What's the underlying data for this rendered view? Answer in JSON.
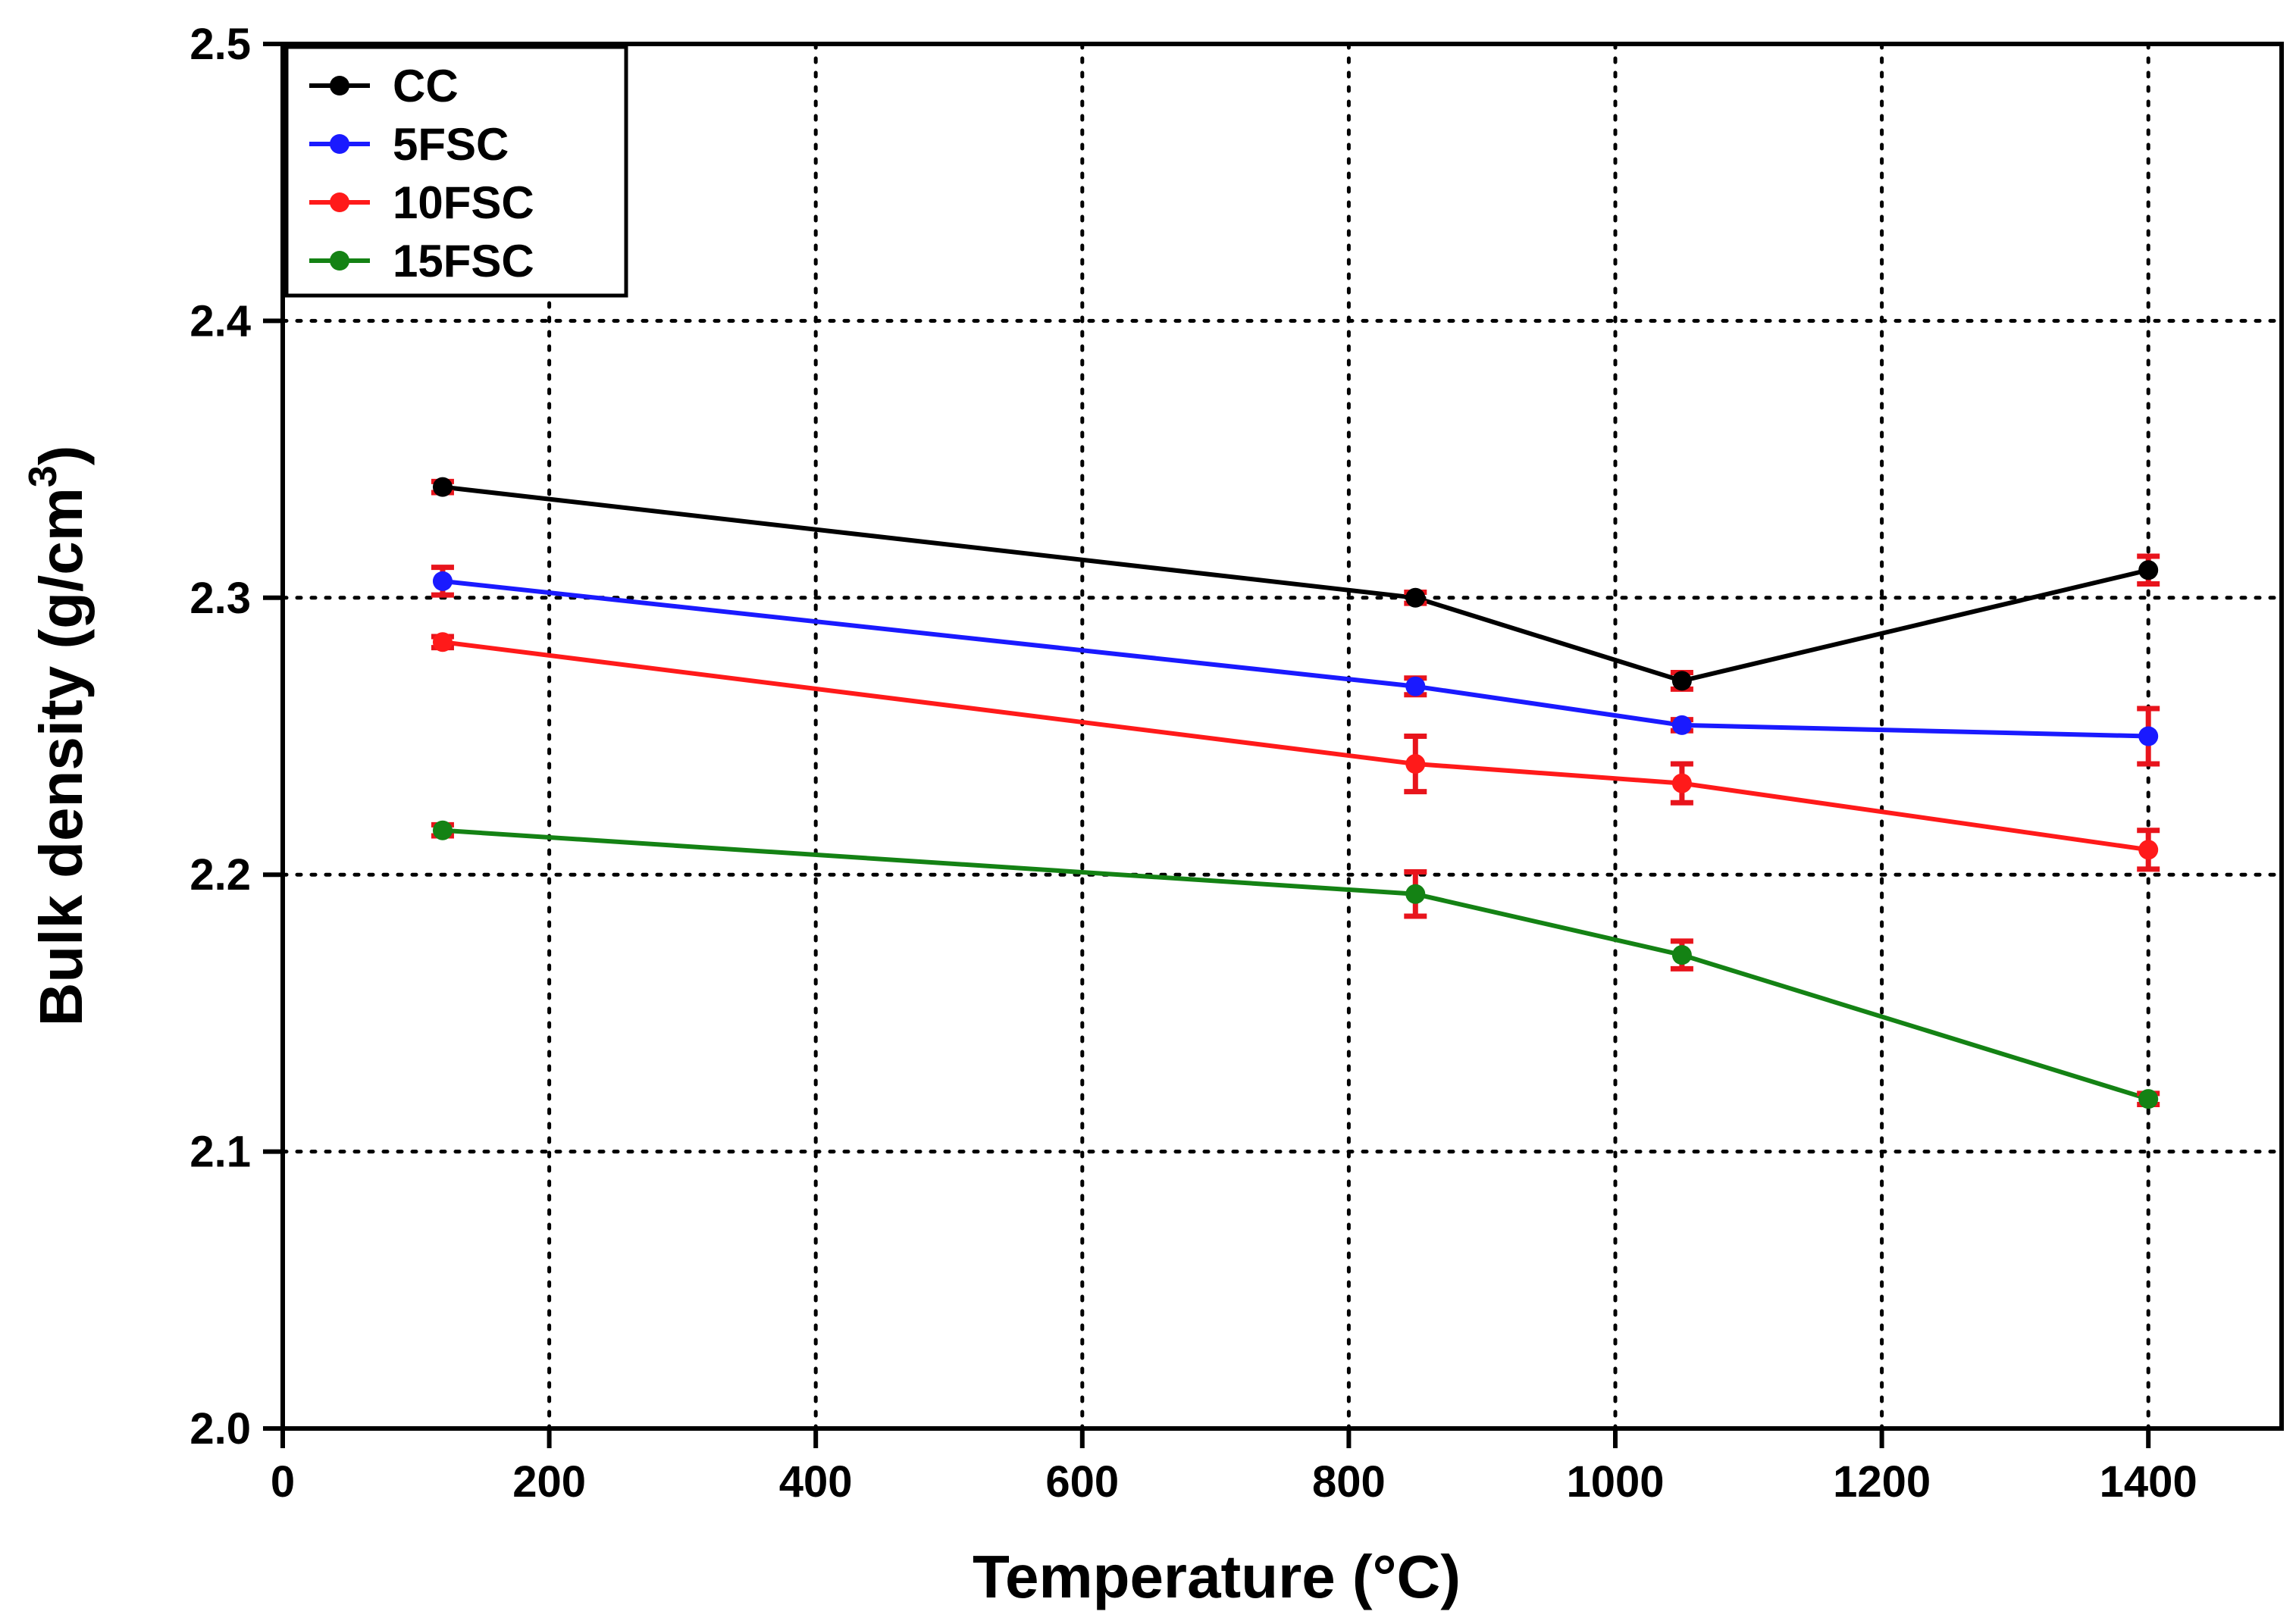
{
  "chart_data": {
    "type": "line",
    "title": "",
    "xlabel": "Temperature (°C)",
    "ylabel_main": "Bulk density (g/cm",
    "ylabel_sup": "3",
    "ylabel_close": ")",
    "xlim": [
      0,
      1500
    ],
    "ylim": [
      2.0,
      2.5
    ],
    "x_ticks": [
      0,
      200,
      400,
      600,
      800,
      1000,
      1200,
      1400
    ],
    "x_tick_labels": [
      "0",
      "200",
      "400",
      "600",
      "800",
      "1000",
      "1200",
      "1400"
    ],
    "y_ticks": [
      2.0,
      2.1,
      2.2,
      2.3,
      2.4,
      2.5
    ],
    "y_tick_labels": [
      "2.0",
      "2.1",
      "2.2",
      "2.3",
      "2.4",
      "2.5"
    ],
    "x_grid": [
      200,
      400,
      600,
      800,
      1000,
      1200,
      1400
    ],
    "y_grid": [
      2.1,
      2.2,
      2.3,
      2.4
    ],
    "grid": true,
    "legend_position": "top-left",
    "error_bar_color": "#e8141c",
    "x": [
      120,
      850,
      1050,
      1400
    ],
    "series": [
      {
        "name": "CC",
        "color": "#000000",
        "values": [
          2.34,
          2.3,
          2.27,
          2.31
        ],
        "errors": [
          0.002,
          0.002,
          0.003,
          0.005
        ]
      },
      {
        "name": "5FSC",
        "color": "#1a1aff",
        "values": [
          2.306,
          2.268,
          2.254,
          2.25
        ],
        "errors": [
          0.005,
          0.003,
          0.002,
          0.01
        ]
      },
      {
        "name": "10FSC",
        "color": "#ff1a1a",
        "values": [
          2.284,
          2.24,
          2.233,
          2.209
        ],
        "errors": [
          0.002,
          0.01,
          0.007,
          0.007
        ]
      },
      {
        "name": "15FSC",
        "color": "#148214",
        "values": [
          2.216,
          2.193,
          2.171,
          2.119
        ],
        "errors": [
          0.002,
          0.008,
          0.005,
          0.002
        ]
      }
    ]
  }
}
